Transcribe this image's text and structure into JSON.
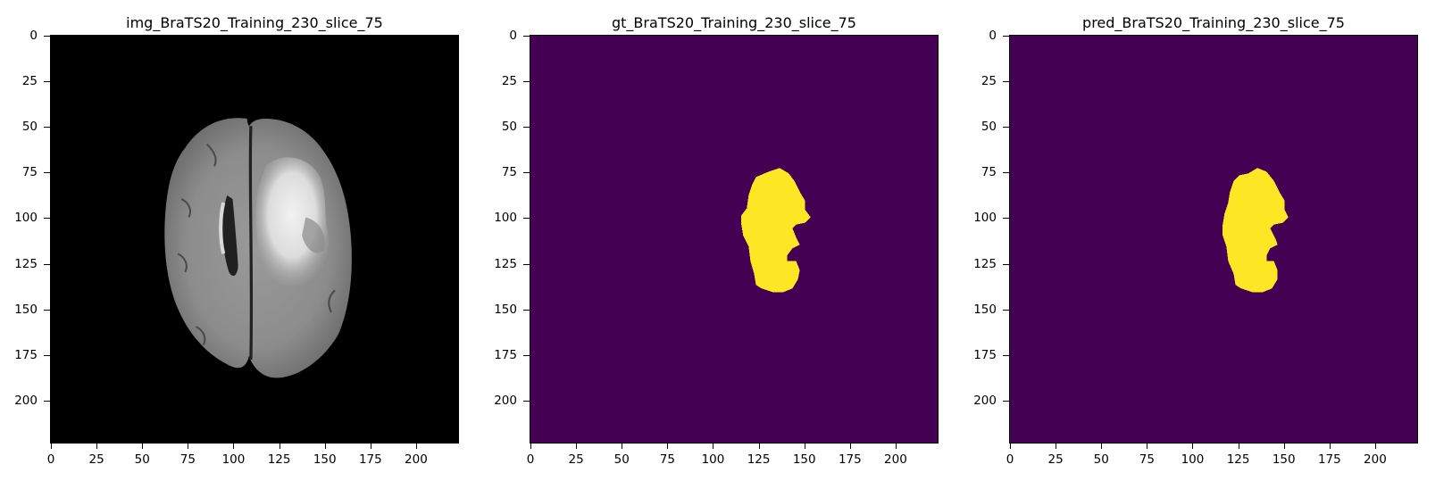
{
  "figure": {
    "panels": [
      {
        "title": "img_BraTS20_Training_230_slice_75",
        "image": "mri-flair-slice-image"
      },
      {
        "title": "gt_BraTS20_Training_230_slice_75",
        "image": "ground-truth-tumor-mask"
      },
      {
        "title": "pred_BraTS20_Training_230_slice_75",
        "image": "predicted-tumor-mask"
      }
    ],
    "x_ticks": [
      "0",
      "25",
      "50",
      "75",
      "100",
      "125",
      "150",
      "175",
      "200"
    ],
    "y_ticks": [
      "0",
      "25",
      "50",
      "75",
      "100",
      "125",
      "150",
      "175",
      "200"
    ],
    "axis_range": [
      0,
      224
    ],
    "colors": {
      "mri_background": "#000000",
      "mask_background": "#440154",
      "mask_foreground": "#fde725"
    }
  }
}
